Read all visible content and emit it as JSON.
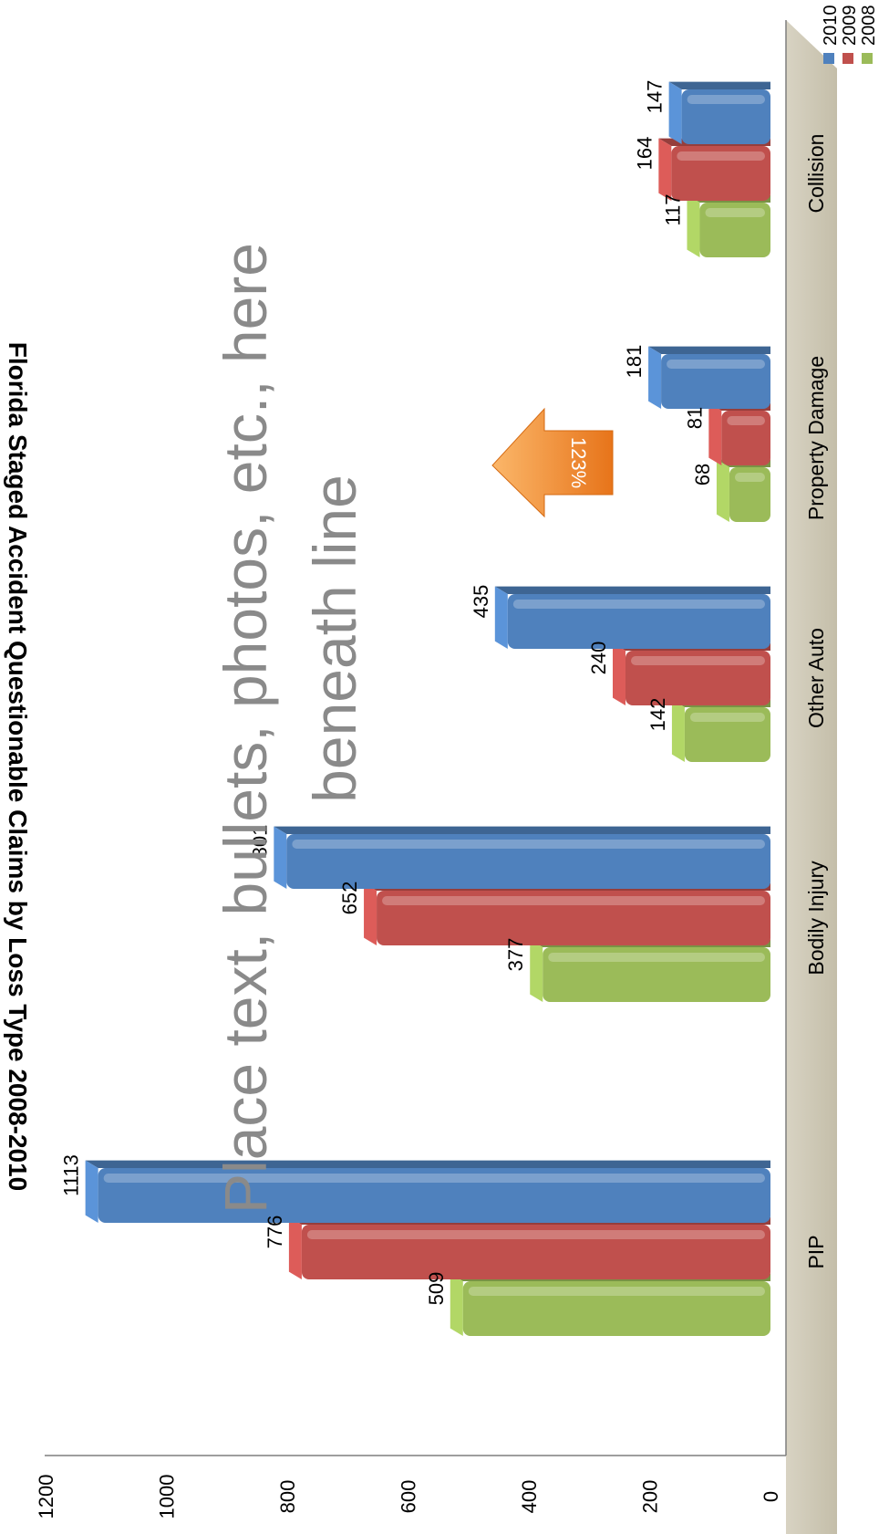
{
  "chart_data": {
    "type": "bar",
    "title": "Florida Staged Accident Questionable Claims by Loss Type 2008-2010",
    "categories": [
      "PIP",
      "Bodily Injury",
      "Other Auto",
      "Property Damage",
      "Collision"
    ],
    "series": [
      {
        "name": "2008",
        "values": [
          509,
          377,
          142,
          68,
          117
        ],
        "color": "#9bbb59"
      },
      {
        "name": "2009",
        "values": [
          776,
          652,
          240,
          81,
          164
        ],
        "color": "#c0504d"
      },
      {
        "name": "2010",
        "values": [
          1113,
          801,
          435,
          181,
          147
        ],
        "color": "#4f81bd"
      }
    ],
    "yticks": [
      "0",
      "200",
      "400",
      "600",
      "800",
      "1000",
      "1200"
    ],
    "ylim": [
      0,
      1200
    ],
    "legend_position": "top-right",
    "orientation": "rotated 90 degrees clockwise"
  },
  "annotation": {
    "text": "123%",
    "color": "#f79646"
  },
  "placeholder": {
    "line1": "Place text, bullets, photos, etc., here",
    "line2": "beneath line"
  }
}
